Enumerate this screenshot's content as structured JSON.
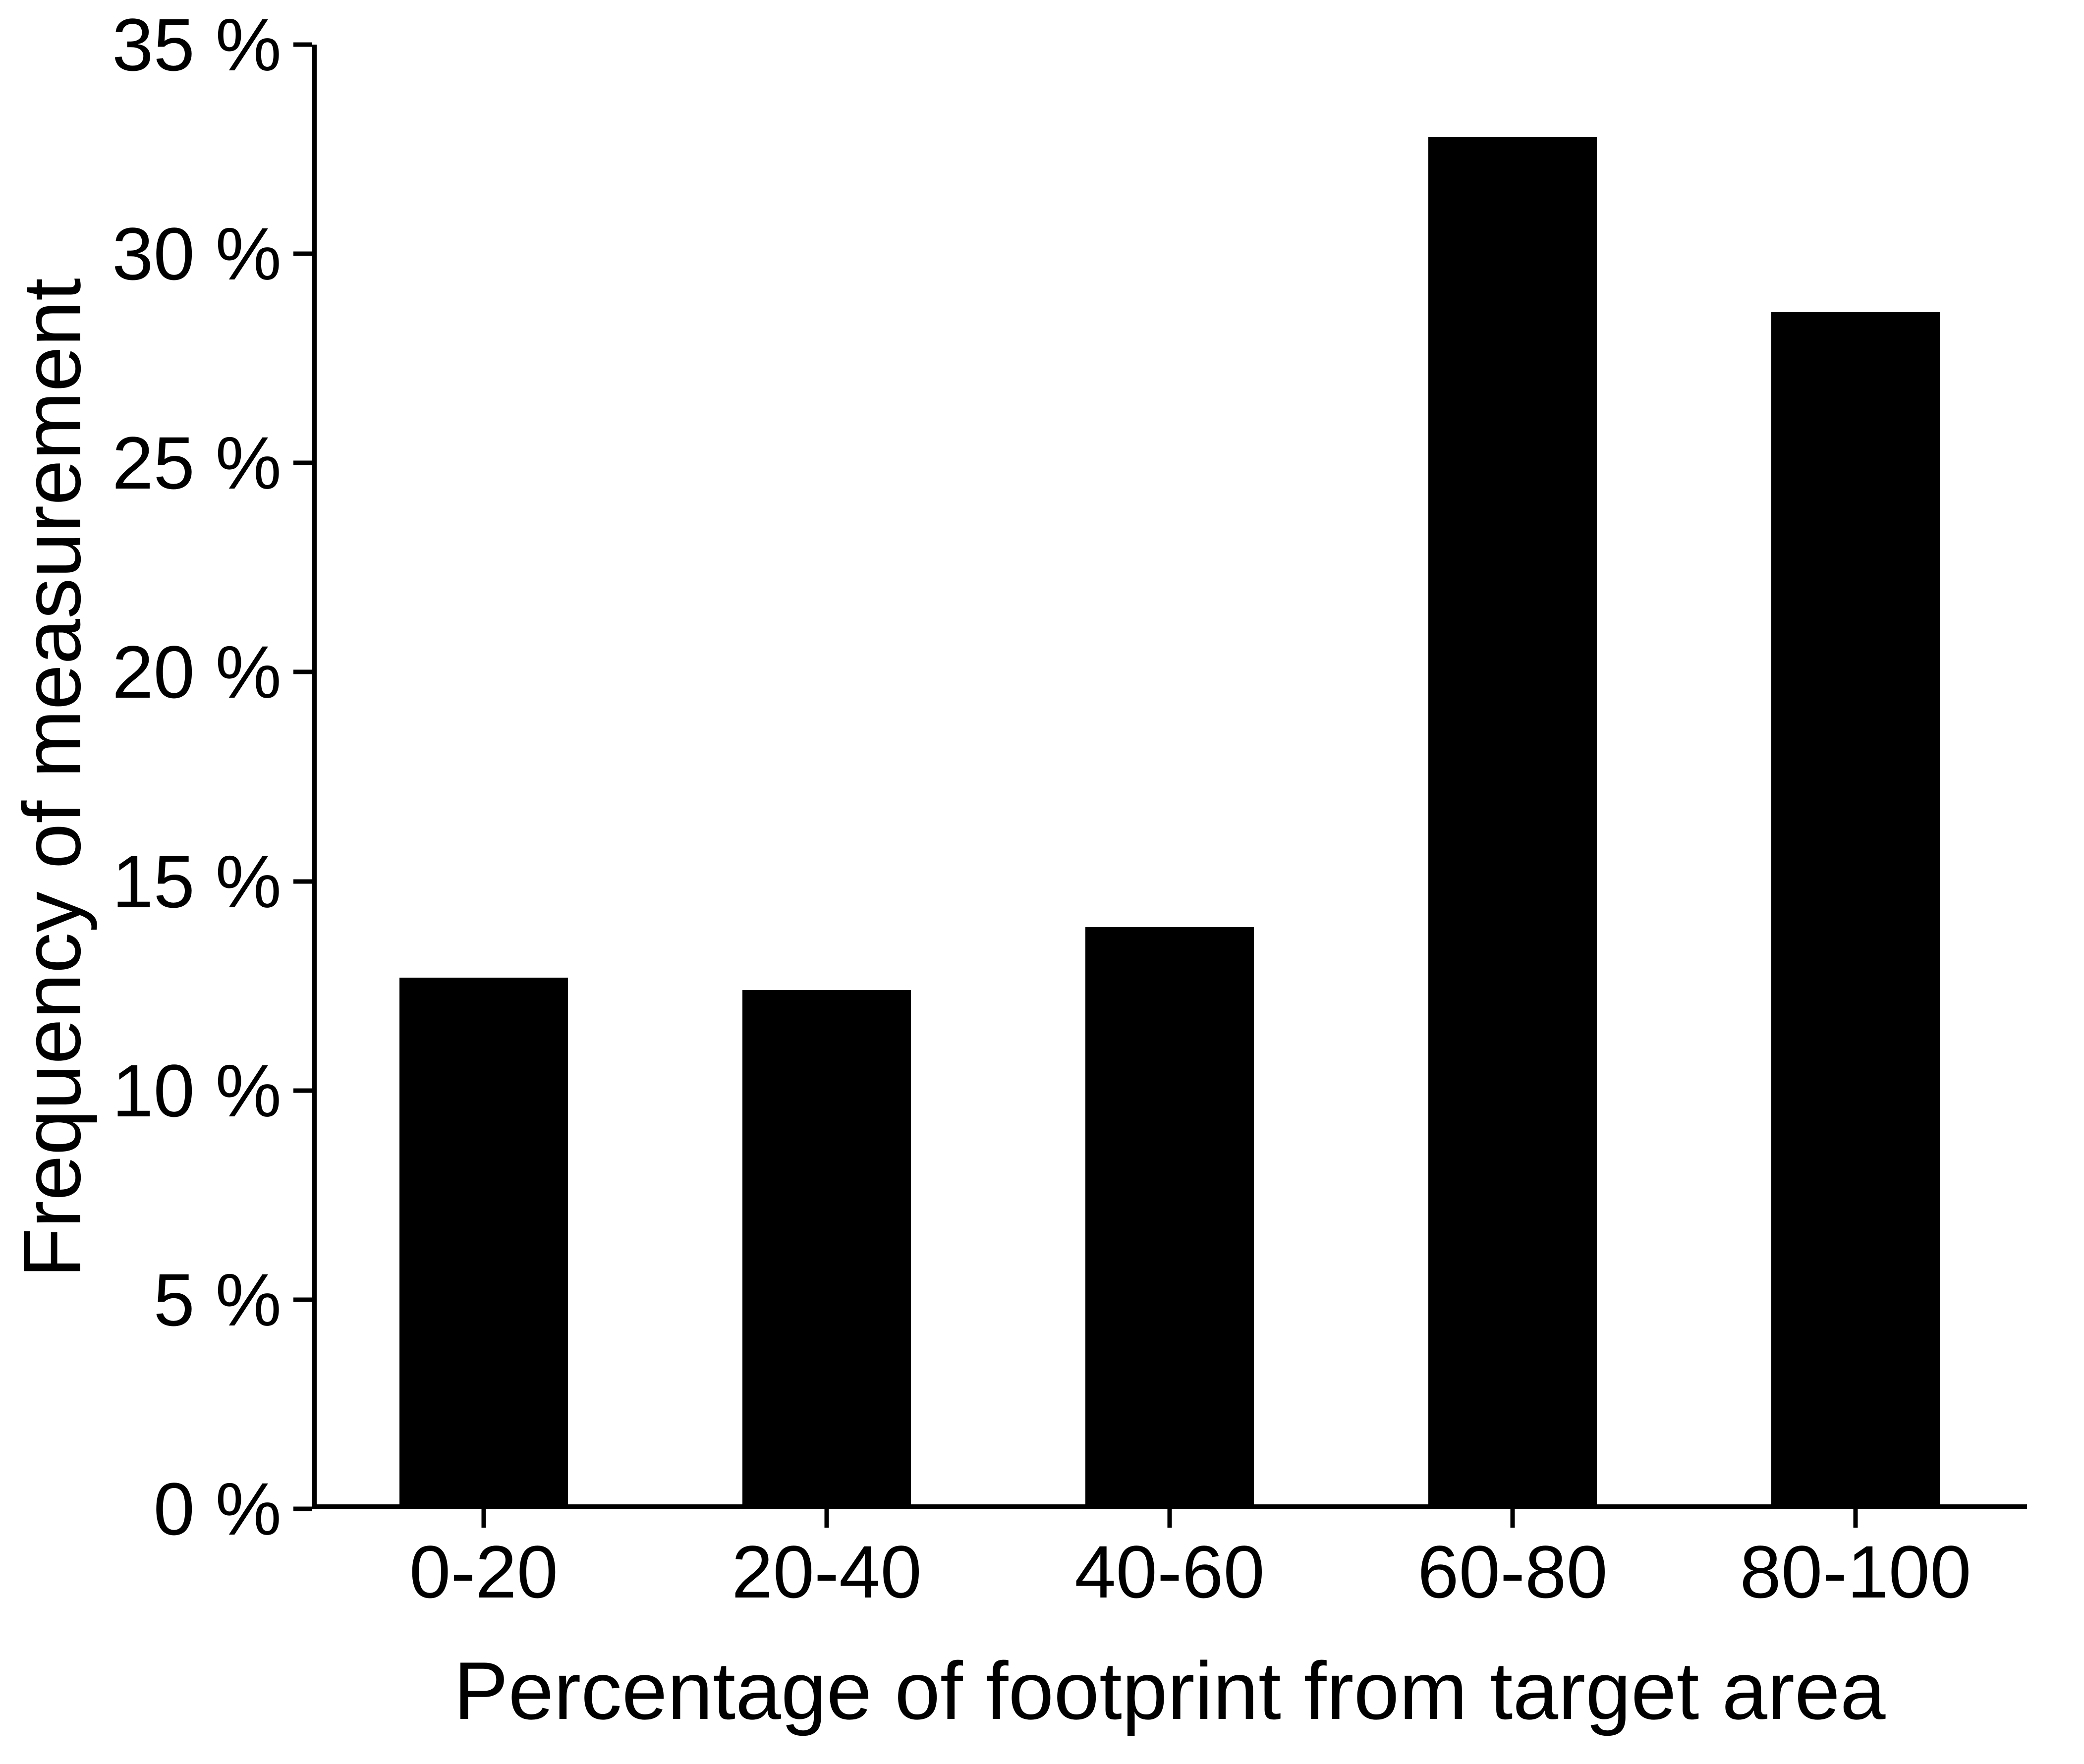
{
  "figure": {
    "background_color": "#ffffff",
    "bar_color": "#000000",
    "axis_color": "#000000"
  },
  "chart_data": {
    "type": "bar",
    "title": "",
    "xlabel": "Percentage of footprint from target area",
    "ylabel": "Frequency of measurement",
    "categories": [
      "0-20",
      "20-40",
      "40-60",
      "60-80",
      "80-100"
    ],
    "values": [
      12.7,
      12.4,
      13.9,
      32.8,
      28.6
    ],
    "ylim": [
      0,
      35
    ],
    "yticks": [
      0,
      5,
      10,
      15,
      20,
      25,
      30,
      35
    ],
    "ytick_labels": [
      "0 %",
      "5 %",
      "10 %",
      "15 %",
      "20 %",
      "25 %",
      "30 %",
      "35 %"
    ],
    "grid": false,
    "legend": "none",
    "unit": "%"
  }
}
